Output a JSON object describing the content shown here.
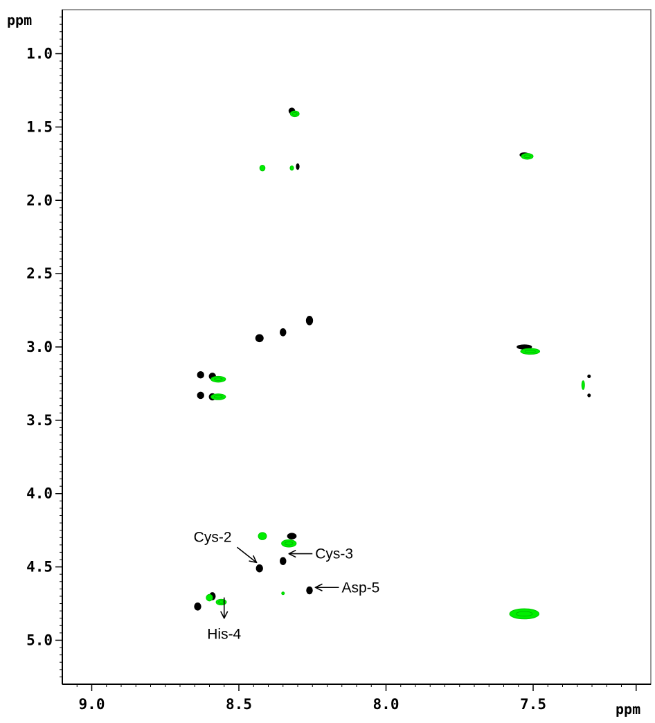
{
  "chart_data": {
    "type": "scatter",
    "xlabel": "ppm",
    "ylabel": "ppm",
    "xlim": [
      9.1,
      7.1
    ],
    "ylim": [
      0.7,
      5.3
    ],
    "x_axis_reversed": true,
    "x_ticks": [
      9.0,
      8.5,
      8.0,
      7.5
    ],
    "x_tick_labels": [
      "9.0",
      "8.5",
      "8.0",
      "7.5"
    ],
    "y_ticks": [
      1.0,
      1.5,
      2.0,
      2.5,
      3.0,
      3.5,
      4.0,
      4.5,
      5.0
    ],
    "y_tick_labels": [
      "1.0",
      "1.5",
      "2.0",
      "2.5",
      "3.0",
      "3.5",
      "4.0",
      "4.5",
      "5.0"
    ],
    "grid": false,
    "colors": {
      "black_series": "#000000",
      "green_series": "#00ee00"
    },
    "series": [
      {
        "color": "#000000",
        "points": [
          {
            "x": 8.32,
            "y": 1.39,
            "w": 0.02,
            "h": 0.04
          },
          {
            "x": 8.3,
            "y": 1.77,
            "w": 0.01,
            "h": 0.04
          },
          {
            "x": 7.53,
            "y": 1.69,
            "w": 0.03,
            "h": 0.03
          },
          {
            "x": 8.26,
            "y": 2.82,
            "w": 0.022,
            "h": 0.06
          },
          {
            "x": 8.35,
            "y": 2.9,
            "w": 0.02,
            "h": 0.05
          },
          {
            "x": 8.43,
            "y": 2.94,
            "w": 0.026,
            "h": 0.05
          },
          {
            "x": 7.53,
            "y": 3.0,
            "w": 0.05,
            "h": 0.03
          },
          {
            "x": 8.63,
            "y": 3.19,
            "w": 0.022,
            "h": 0.045
          },
          {
            "x": 8.59,
            "y": 3.2,
            "w": 0.022,
            "h": 0.045
          },
          {
            "x": 8.63,
            "y": 3.33,
            "w": 0.022,
            "h": 0.045
          },
          {
            "x": 8.59,
            "y": 3.34,
            "w": 0.022,
            "h": 0.045
          },
          {
            "x": 7.31,
            "y": 3.2,
            "w": 0.004,
            "h": 0.02
          },
          {
            "x": 7.31,
            "y": 3.33,
            "w": 0.004,
            "h": 0.02
          },
          {
            "x": 8.32,
            "y": 4.29,
            "w": 0.03,
            "h": 0.04
          },
          {
            "x": 8.35,
            "y": 4.46,
            "w": 0.02,
            "h": 0.05
          },
          {
            "x": 8.43,
            "y": 4.51,
            "w": 0.022,
            "h": 0.05
          },
          {
            "x": 8.26,
            "y": 4.66,
            "w": 0.02,
            "h": 0.05
          },
          {
            "x": 8.64,
            "y": 4.77,
            "w": 0.022,
            "h": 0.05
          },
          {
            "x": 8.59,
            "y": 4.7,
            "w": 0.02,
            "h": 0.05
          }
        ]
      },
      {
        "color": "#00ee00",
        "points": [
          {
            "x": 8.31,
            "y": 1.41,
            "w": 0.03,
            "h": 0.04
          },
          {
            "x": 8.42,
            "y": 1.78,
            "w": 0.018,
            "h": 0.04
          },
          {
            "x": 8.32,
            "y": 1.78,
            "w": 0.012,
            "h": 0.03
          },
          {
            "x": 7.52,
            "y": 1.7,
            "w": 0.04,
            "h": 0.04
          },
          {
            "x": 7.51,
            "y": 3.03,
            "w": 0.065,
            "h": 0.04
          },
          {
            "x": 8.57,
            "y": 3.22,
            "w": 0.05,
            "h": 0.04
          },
          {
            "x": 8.57,
            "y": 3.34,
            "w": 0.05,
            "h": 0.04
          },
          {
            "x": 7.33,
            "y": 3.26,
            "w": 0.006,
            "h": 0.06
          },
          {
            "x": 8.42,
            "y": 4.29,
            "w": 0.028,
            "h": 0.05
          },
          {
            "x": 8.33,
            "y": 4.34,
            "w": 0.05,
            "h": 0.05
          },
          {
            "x": 8.35,
            "y": 4.68,
            "w": 0.006,
            "h": 0.01
          },
          {
            "x": 8.6,
            "y": 4.71,
            "w": 0.022,
            "h": 0.045
          },
          {
            "x": 8.56,
            "y": 4.74,
            "w": 0.035,
            "h": 0.04
          },
          {
            "x": 7.53,
            "y": 4.82,
            "w": 0.1,
            "h": 0.07
          }
        ]
      }
    ],
    "annotations": [
      {
        "text": "Cys-2",
        "x": 8.44,
        "y": 4.47,
        "dir": "down-right"
      },
      {
        "text": "Cys-3",
        "x": 8.33,
        "y": 4.41,
        "dir": "left"
      },
      {
        "text": "Asp-5",
        "x": 8.24,
        "y": 4.64,
        "dir": "left"
      },
      {
        "text": "His-4",
        "x": 8.55,
        "y": 4.85,
        "dir": "down"
      }
    ]
  }
}
